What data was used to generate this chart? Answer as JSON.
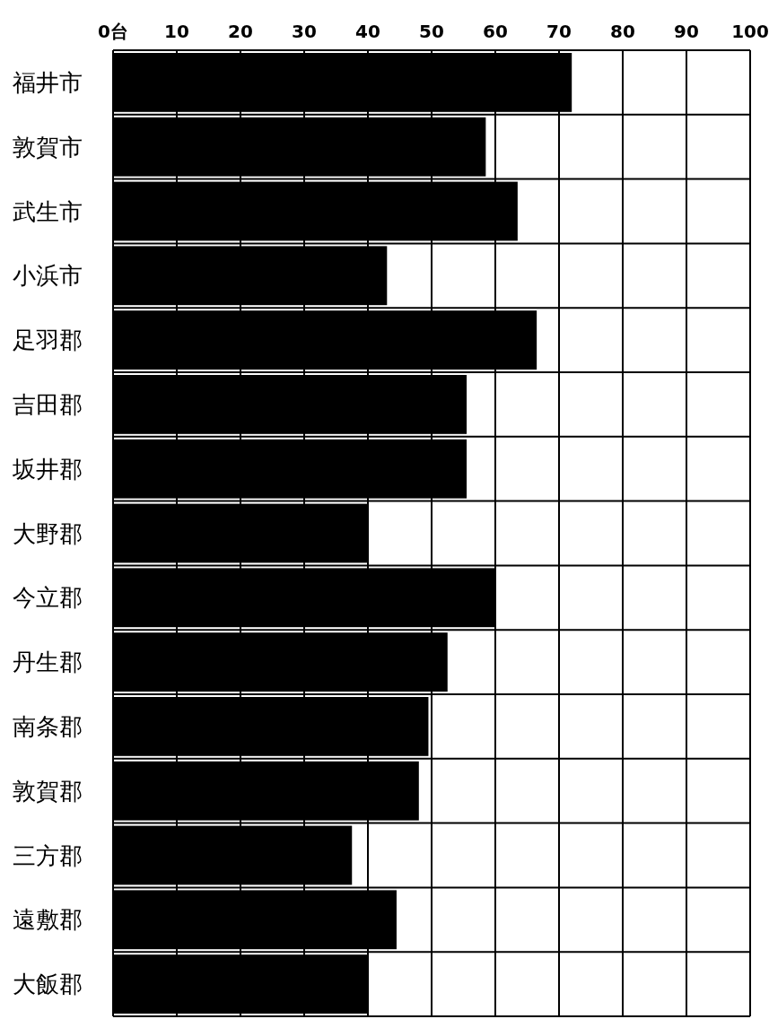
{
  "chart_data": {
    "type": "bar",
    "orientation": "horizontal",
    "categories": [
      "福井市",
      "敦賀市",
      "武生市",
      "小浜市",
      "足羽郡",
      "吉田郡",
      "坂井郡",
      "大野郡",
      "今立郡",
      "丹生郡",
      "南条郡",
      "敦賀郡",
      "三方郡",
      "遠敷郡",
      "大飯郡"
    ],
    "values": [
      72,
      58.5,
      63.5,
      43,
      66.5,
      55.5,
      55.5,
      40,
      60,
      52.5,
      49.5,
      48,
      37.5,
      44.5,
      40
    ],
    "color": "#000000",
    "xlim": [
      0,
      100
    ],
    "xticks": [
      {
        "value": 0,
        "label": "0台"
      },
      10,
      20,
      30,
      40,
      50,
      60,
      70,
      80,
      90,
      100
    ],
    "grid": true
  }
}
